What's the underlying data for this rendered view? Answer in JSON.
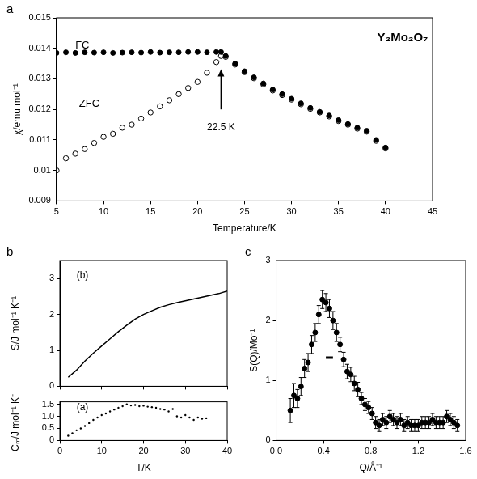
{
  "chart_data": [
    {
      "type": "scatter",
      "panel": "a",
      "x_label": "Temperature/K",
      "y_label": "χ/emu mol⁻¹",
      "xlim": [
        5,
        45
      ],
      "xticks": [
        5,
        10,
        15,
        20,
        25,
        30,
        35,
        40,
        45
      ],
      "ylim": [
        0.009,
        0.015
      ],
      "yticks": [
        0.009,
        0.01,
        0.011,
        0.012,
        0.013,
        0.014,
        0.015
      ],
      "grid": false,
      "annotations": [
        "Y₂Mo₂O₇"
      ],
      "transition": {
        "value": 22.5,
        "label": "22.5 K"
      },
      "series": [
        {
          "name": "FC",
          "color": "#000000",
          "marker": "circle",
          "line_style": "none",
          "x": [
            5,
            6,
            7,
            8,
            9,
            10,
            11,
            12,
            13,
            14,
            15,
            16,
            17,
            18,
            19,
            20,
            21,
            22,
            22.5,
            23,
            24,
            25,
            26,
            27,
            28,
            29,
            30,
            31,
            32,
            33,
            34,
            35,
            36,
            37,
            38,
            39,
            40
          ],
          "values": [
            0.01385,
            0.01387,
            0.01385,
            0.01387,
            0.01386,
            0.01387,
            0.01385,
            0.01386,
            0.01387,
            0.01386,
            0.01388,
            0.01386,
            0.01387,
            0.01387,
            0.01388,
            0.01388,
            0.01387,
            0.01388,
            0.01388,
            0.01375,
            0.0135,
            0.01325,
            0.01305,
            0.01285,
            0.01265,
            0.0125,
            0.01235,
            0.0122,
            0.01205,
            0.01192,
            0.0118,
            0.01165,
            0.01152,
            0.0114,
            0.0113,
            0.011,
            0.01075
          ]
        },
        {
          "name": "ZFC",
          "color": "#000000",
          "marker": "open_circle",
          "line_style": "none",
          "x": [
            5,
            6,
            7,
            8,
            9,
            10,
            11,
            12,
            13,
            14,
            15,
            16,
            17,
            18,
            19,
            20,
            21,
            22,
            22.5,
            23,
            24,
            25,
            26,
            27,
            28,
            29,
            30,
            31,
            32,
            33,
            34,
            35,
            36,
            37,
            38,
            39,
            40
          ],
          "values": [
            0.01,
            0.0104,
            0.01055,
            0.0107,
            0.0109,
            0.0111,
            0.0112,
            0.0114,
            0.0115,
            0.0117,
            0.0119,
            0.0121,
            0.0123,
            0.0125,
            0.0127,
            0.0129,
            0.0132,
            0.01355,
            0.01375,
            0.01372,
            0.01347,
            0.01322,
            0.01302,
            0.01282,
            0.01262,
            0.01247,
            0.01232,
            0.01217,
            0.01202,
            0.0119,
            0.01177,
            0.01162,
            0.0115,
            0.01137,
            0.01127,
            0.01097,
            0.01072
          ]
        }
      ]
    },
    {
      "type": "line",
      "panel": "b",
      "y_label": "S/J mol⁻¹ K⁻¹",
      "xlim": [
        0,
        40
      ],
      "xticks": [
        0,
        10,
        20,
        30,
        40
      ],
      "ylim": [
        0,
        3.5
      ],
      "yticks": [
        0,
        1,
        2,
        3
      ],
      "grid": false,
      "tick_labels": "y",
      "annotations": [
        "(b)"
      ],
      "series": [
        {
          "color": "#000000",
          "marker": "none",
          "line_style": "solid",
          "x": [
            2,
            4,
            6,
            8,
            10,
            12,
            14,
            16,
            18,
            20,
            22,
            24,
            26,
            28,
            30,
            32,
            34,
            36,
            38,
            40
          ],
          "values": [
            0.25,
            0.45,
            0.7,
            0.92,
            1.12,
            1.32,
            1.52,
            1.7,
            1.87,
            2.0,
            2.1,
            2.2,
            2.27,
            2.33,
            2.38,
            2.43,
            2.48,
            2.53,
            2.58,
            2.65
          ]
        }
      ]
    },
    {
      "type": "scatter",
      "x_label": "T/K",
      "y_label": "Cₘ/J mol⁻¹ K⁻¹",
      "xlim": [
        0,
        40
      ],
      "xticks": [
        0,
        10,
        20,
        30,
        40
      ],
      "ylim": [
        0,
        1.6
      ],
      "yticks": [
        0,
        0.5,
        {
          "value": 1,
          "label": "1.0"
        },
        1.5
      ],
      "grid": false,
      "annotations": [
        "(a)"
      ],
      "series": [
        {
          "color": "#000000",
          "marker": "dot",
          "line_style": "none",
          "x": [
            2,
            3,
            4,
            5,
            6,
            7,
            8,
            9,
            10,
            11,
            12,
            13,
            14,
            15,
            16,
            17,
            18,
            19,
            20,
            21,
            22,
            23,
            24,
            25,
            26,
            27,
            28,
            29,
            30,
            31,
            32,
            33,
            34,
            35
          ],
          "values": [
            0.2,
            0.3,
            0.42,
            0.5,
            0.6,
            0.72,
            0.85,
            0.95,
            1.05,
            1.12,
            1.2,
            1.28,
            1.35,
            1.42,
            1.5,
            1.45,
            1.47,
            1.42,
            1.44,
            1.4,
            1.38,
            1.35,
            1.3,
            1.28,
            1.2,
            1.3,
            1.0,
            0.95,
            1.05,
            0.95,
            0.85,
            0.95,
            0.9,
            0.92
          ]
        }
      ]
    },
    {
      "type": "scatter",
      "panel": "c",
      "x_label": "Q/Å⁻¹",
      "y_label": "S(Q)/Mo⁻¹",
      "xlim": [
        0,
        1.6
      ],
      "xticks": [
        {
          "value": 0,
          "label": "0.0"
        },
        {
          "value": 0.4,
          "label": "0.4"
        },
        {
          "value": 0.8,
          "label": "0.8"
        },
        {
          "value": 1.2,
          "label": "1.2"
        },
        {
          "value": 1.6,
          "label": "1.6"
        }
      ],
      "ylim": [
        0,
        3
      ],
      "yticks": [
        0,
        1,
        2,
        3
      ],
      "grid": false,
      "resolution_bar": {
        "x": [
          0.42,
          0.48
        ],
        "y": 1.38
      },
      "series": [
        {
          "color": "#000000",
          "marker": "circle",
          "line_style": "none",
          "x": [
            0.12,
            0.15,
            0.18,
            0.21,
            0.24,
            0.27,
            0.3,
            0.33,
            0.36,
            0.39,
            0.42,
            0.45,
            0.48,
            0.51,
            0.54,
            0.57,
            0.6,
            0.63,
            0.66,
            0.69,
            0.72,
            0.75,
            0.78,
            0.81,
            0.84,
            0.87,
            0.9,
            0.93,
            0.96,
            0.99,
            1.02,
            1.05,
            1.08,
            1.11,
            1.14,
            1.17,
            1.2,
            1.23,
            1.26,
            1.29,
            1.32,
            1.35,
            1.38,
            1.41,
            1.44,
            1.47,
            1.5,
            1.53
          ],
          "values": [
            0.5,
            0.75,
            0.7,
            0.9,
            1.2,
            1.3,
            1.6,
            1.8,
            2.1,
            2.35,
            2.3,
            2.2,
            2.0,
            1.8,
            1.6,
            1.35,
            1.15,
            1.1,
            0.95,
            0.85,
            0.7,
            0.6,
            0.55,
            0.45,
            0.3,
            0.25,
            0.35,
            0.3,
            0.4,
            0.35,
            0.3,
            0.35,
            0.25,
            0.3,
            0.25,
            0.25,
            0.25,
            0.3,
            0.3,
            0.3,
            0.35,
            0.3,
            0.3,
            0.3,
            0.4,
            0.35,
            0.3,
            0.25
          ],
          "errors": [
            0.2,
            0.2,
            0.15,
            0.15,
            0.15,
            0.15,
            0.15,
            0.15,
            0.15,
            0.15,
            0.15,
            0.15,
            0.15,
            0.15,
            0.12,
            0.12,
            0.12,
            0.12,
            0.12,
            0.12,
            0.1,
            0.1,
            0.1,
            0.1,
            0.1,
            0.1,
            0.1,
            0.1,
            0.1,
            0.1,
            0.1,
            0.1,
            0.1,
            0.1,
            0.1,
            0.1,
            0.1,
            0.1,
            0.1,
            0.1,
            0.1,
            0.1,
            0.1,
            0.1,
            0.1,
            0.1,
            0.1,
            0.1
          ]
        }
      ]
    }
  ]
}
